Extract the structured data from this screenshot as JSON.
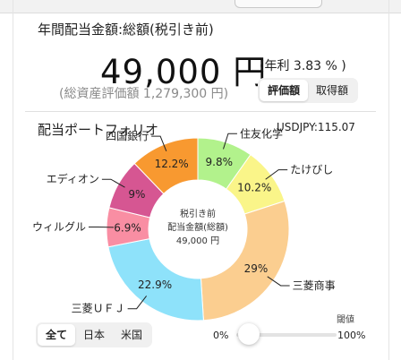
{
  "summary": {
    "title": "年間配当金額:総額(税引き前)",
    "amount": "49,000 円",
    "yield_text": "(年利 3.83 % )",
    "asset_text": "(総資産評価額 1,279,300 円)",
    "toggle": [
      "評価額",
      "取得額"
    ],
    "toggle_active": 0
  },
  "portfolio": {
    "title": "配当ポートフォリオ",
    "fx_rate": "USDJPY:115.07",
    "center_lines": [
      "税引き前",
      "配当金額(総額)",
      "49,000 円"
    ]
  },
  "chart_data": {
    "type": "pie",
    "donut": true,
    "slices": [
      {
        "name": "住友化学",
        "value": 9.8,
        "label": "9.8%",
        "color": "#b2f28c"
      },
      {
        "name": "たけびし",
        "value": 10.2,
        "label": "10.2%",
        "color": "#faf589"
      },
      {
        "name": "三菱商事",
        "value": 29.0,
        "label": "29%",
        "color": "#fbce90"
      },
      {
        "name": "三菱ＵＦＪ",
        "value": 22.9,
        "label": "22.9%",
        "color": "#8ee2fa"
      },
      {
        "name": "ウィルグル",
        "value": 6.9,
        "label": "6.9%",
        "color": "#f98ea3"
      },
      {
        "name": "エディオン",
        "value": 9.0,
        "label": "9%",
        "color": "#d65692"
      },
      {
        "name": "四国銀行",
        "value": 12.2,
        "label": "12.2%",
        "color": "#f89930"
      }
    ]
  },
  "filter": {
    "tabs": [
      "全て",
      "日本",
      "米国"
    ],
    "active": 0
  },
  "threshold": {
    "label": "閾値",
    "min_label": "0%",
    "max_label": "100%",
    "value": 0
  },
  "colors": {
    "ring_label_line": "#222222"
  }
}
